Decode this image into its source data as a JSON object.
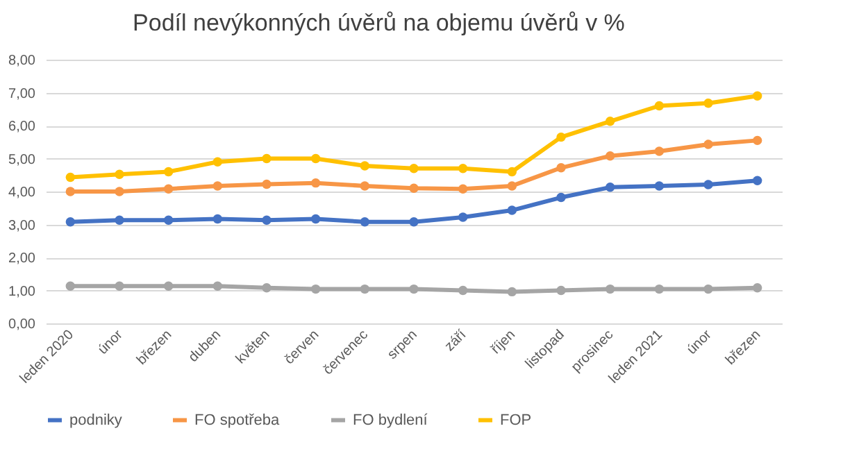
{
  "chart_data": {
    "type": "line",
    "title": "Podíl nevýkonných úvěrů na objemu úvěrů v %",
    "categories": [
      "leden 2020",
      "únor",
      "březen",
      "duben",
      "květen",
      "červen",
      "červenec",
      "srpen",
      "září",
      "říjen",
      "listopad",
      "prosinec",
      "leden 2021",
      "únor",
      "březen"
    ],
    "series": [
      {
        "name": "podniky",
        "color": "#4472c4",
        "values": [
          3.08,
          3.13,
          3.13,
          3.17,
          3.13,
          3.17,
          3.08,
          3.08,
          3.22,
          3.43,
          3.82,
          4.13,
          4.17,
          4.21,
          4.33
        ]
      },
      {
        "name": "FO spotřeba",
        "color": "#f79646",
        "values": [
          4.0,
          4.0,
          4.08,
          4.17,
          4.22,
          4.26,
          4.17,
          4.1,
          4.08,
          4.17,
          4.72,
          5.08,
          5.22,
          5.43,
          5.55
        ]
      },
      {
        "name": "FO bydlení",
        "color": "#a5a5a5",
        "values": [
          1.13,
          1.13,
          1.13,
          1.13,
          1.08,
          1.04,
          1.04,
          1.04,
          1.0,
          0.96,
          1.0,
          1.04,
          1.04,
          1.04,
          1.08
        ]
      },
      {
        "name": "FOP",
        "color": "#ffc000",
        "values": [
          4.43,
          4.52,
          4.6,
          4.9,
          5.0,
          5.0,
          4.78,
          4.7,
          4.7,
          4.6,
          5.65,
          6.13,
          6.6,
          6.68,
          6.9
        ]
      }
    ],
    "ylim": [
      0,
      8
    ],
    "yticks": [
      {
        "value": 0,
        "label": "0,00"
      },
      {
        "value": 1,
        "label": "1,00"
      },
      {
        "value": 2,
        "label": "2,00"
      },
      {
        "value": 3,
        "label": "3,00"
      },
      {
        "value": 4,
        "label": "4,00"
      },
      {
        "value": 5,
        "label": "5,00"
      },
      {
        "value": 6,
        "label": "6,00"
      },
      {
        "value": 7,
        "label": "7,00"
      },
      {
        "value": 8,
        "label": "8,00"
      }
    ],
    "grid": "y",
    "legend": "bottom",
    "marker": "circle",
    "line_style": "solid"
  }
}
